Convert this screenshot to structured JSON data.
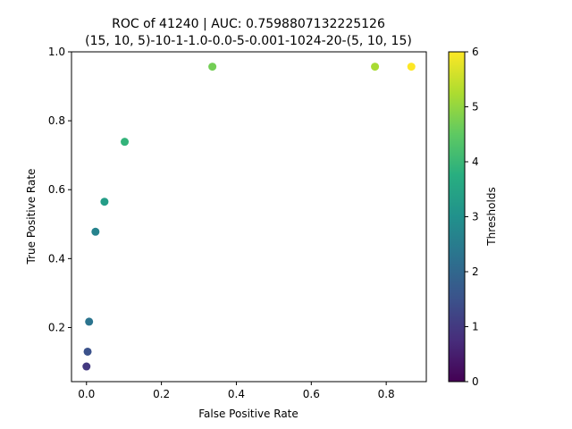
{
  "chart_data": {
    "type": "scatter",
    "title_line1": "ROC of 41240 | AUC: 0.7598807132225126",
    "title_line2": "(15, 10, 5)-10-1-1.0-0.0-5-0.001-1024-20-(5, 10, 15)",
    "xlabel": "False Positive Rate",
    "ylabel": "True Positive Rate",
    "xlim": [
      -0.04,
      0.907
    ],
    "ylim": [
      0.043,
      1.0
    ],
    "xticks": [
      0.0,
      0.2,
      0.4,
      0.6,
      0.8
    ],
    "xtick_labels": [
      "0.0",
      "0.2",
      "0.4",
      "0.6",
      "0.8"
    ],
    "yticks": [
      0.2,
      0.4,
      0.6,
      0.8,
      1.0
    ],
    "ytick_labels": [
      "0.2",
      "0.4",
      "0.6",
      "0.8",
      "1.0"
    ],
    "grid": false,
    "colorbar": {
      "label": "Thresholds",
      "colormap": "viridis",
      "range": [
        0,
        6
      ],
      "ticks": [
        0,
        1,
        2,
        3,
        4,
        5,
        6
      ],
      "tick_labels": [
        "0",
        "1",
        "2",
        "3",
        "4",
        "5",
        "6"
      ]
    },
    "points": [
      {
        "x": 0.0,
        "y": 0.087,
        "threshold": 1.0
      },
      {
        "x": 0.003,
        "y": 0.13,
        "threshold": 1.5
      },
      {
        "x": 0.007,
        "y": 0.217,
        "threshold": 2.3
      },
      {
        "x": 0.024,
        "y": 0.478,
        "threshold": 2.65
      },
      {
        "x": 0.048,
        "y": 0.565,
        "threshold": 3.3
      },
      {
        "x": 0.102,
        "y": 0.739,
        "threshold": 3.9
      },
      {
        "x": 0.336,
        "y": 0.957,
        "threshold": 4.7
      },
      {
        "x": 0.77,
        "y": 0.957,
        "threshold": 5.2
      },
      {
        "x": 0.867,
        "y": 0.957,
        "threshold": 6.0
      }
    ]
  }
}
